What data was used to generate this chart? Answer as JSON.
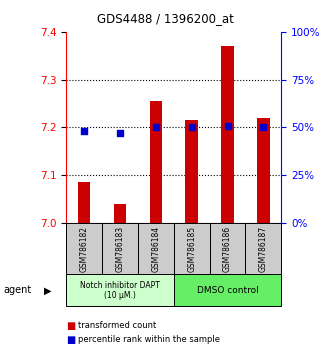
{
  "title": "GDS4488 / 1396200_at",
  "samples": [
    "GSM786182",
    "GSM786183",
    "GSM786184",
    "GSM786185",
    "GSM786186",
    "GSM786187"
  ],
  "red_values": [
    7.085,
    7.04,
    7.255,
    7.215,
    7.37,
    7.22
  ],
  "blue_values": [
    48,
    47,
    50,
    50,
    51,
    50
  ],
  "ylim_left": [
    7.0,
    7.4
  ],
  "ylim_right": [
    0,
    100
  ],
  "yticks_left": [
    7.0,
    7.1,
    7.2,
    7.3,
    7.4
  ],
  "yticks_right": [
    0,
    25,
    50,
    75,
    100
  ],
  "ytick_labels_right": [
    "0%",
    "25%",
    "50%",
    "75%",
    "100%"
  ],
  "group1_label": "Notch inhibitor DAPT\n(10 μM.)",
  "group2_label": "DMSO control",
  "group1_color": "#ccffcc",
  "group2_color": "#66ee66",
  "bar_color": "#cc0000",
  "dot_color": "#0000cc",
  "legend_red": "transformed count",
  "legend_blue": "percentile rank within the sample",
  "agent_label": "agent",
  "bar_width": 0.35,
  "sample_bg": "#cccccc"
}
